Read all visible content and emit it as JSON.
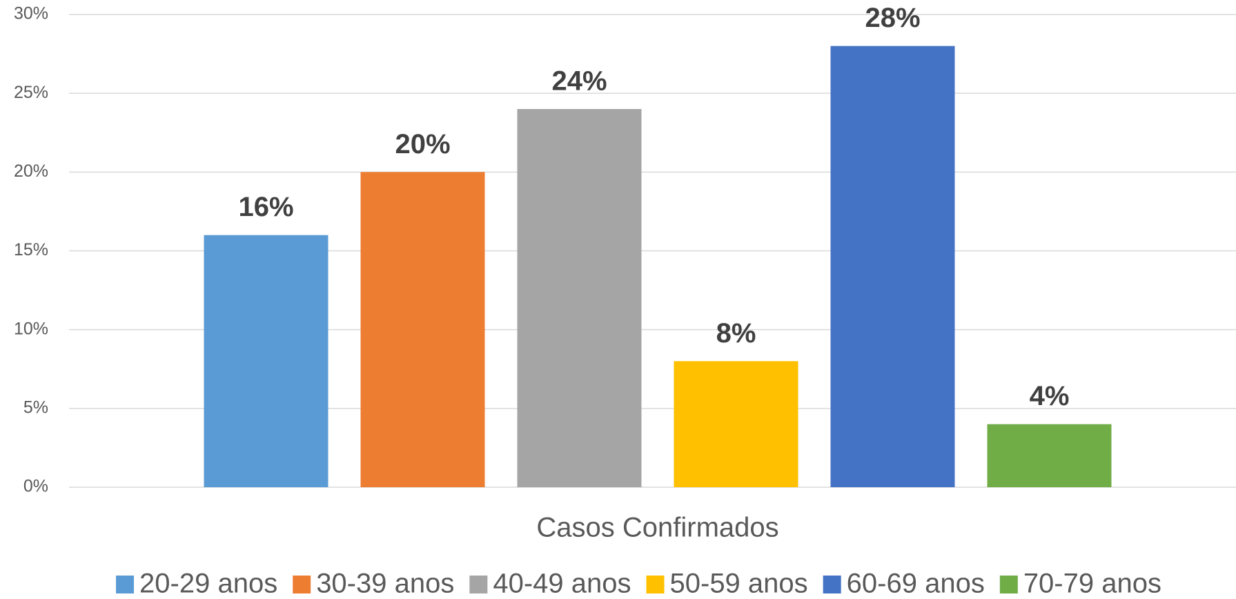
{
  "chart_data": {
    "type": "bar",
    "categories": [
      "Casos Confirmados"
    ],
    "series": [
      {
        "name": "20-29 anos",
        "color": "#5b9bd5",
        "values": [
          16
        ],
        "value_labels": [
          "16%"
        ]
      },
      {
        "name": "30-39 anos",
        "color": "#ed7d31",
        "values": [
          20
        ],
        "value_labels": [
          "20%"
        ]
      },
      {
        "name": "40-49 anos",
        "color": "#a5a5a5",
        "values": [
          24
        ],
        "value_labels": [
          "24%"
        ]
      },
      {
        "name": "50-59 anos",
        "color": "#ffc000",
        "values": [
          8
        ],
        "value_labels": [
          "8%"
        ]
      },
      {
        "name": "60-69 anos",
        "color": "#4472c4",
        "values": [
          28
        ],
        "value_labels": [
          "28%"
        ]
      },
      {
        "name": "70-79 anos",
        "color": "#70ad47",
        "values": [
          4
        ],
        "value_labels": [
          "4%"
        ]
      }
    ],
    "ylim": [
      0,
      30
    ],
    "yticks": [
      {
        "value": 0,
        "label": "0%"
      },
      {
        "value": 5,
        "label": "5%"
      },
      {
        "value": 10,
        "label": "10%"
      },
      {
        "value": 15,
        "label": "15%"
      },
      {
        "value": 20,
        "label": "20%"
      },
      {
        "value": 25,
        "label": "25%"
      },
      {
        "value": 30,
        "label": "30%"
      }
    ],
    "grid": true,
    "legend": "bottom"
  }
}
